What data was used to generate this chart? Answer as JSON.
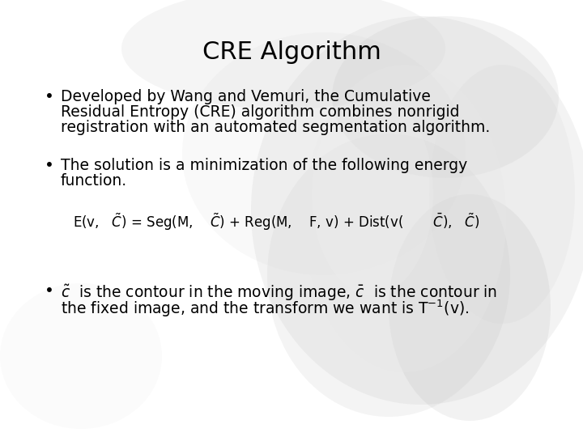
{
  "title": "CRE Algorithm",
  "title_fontsize": 22,
  "background_color": "#ffffff",
  "text_color": "#000000",
  "bullet1_line1": "Developed by Wang and Vemuri, the Cumulative",
  "bullet1_line2": "Residual Entropy (CRE) algorithm combines nonrigid",
  "bullet1_line3": "registration with an automated segmentation algorithm.",
  "bullet2_line1": "The solution is a minimization of the following energy",
  "bullet2_line2": "function.",
  "bullet3_line1": " is the contour in the moving image,",
  "bullet3_line2": " is the contour in",
  "bullet3_line3": "the fixed image, and the transform we want is T",
  "body_fontsize": 13.5,
  "formula_fontsize": 12
}
